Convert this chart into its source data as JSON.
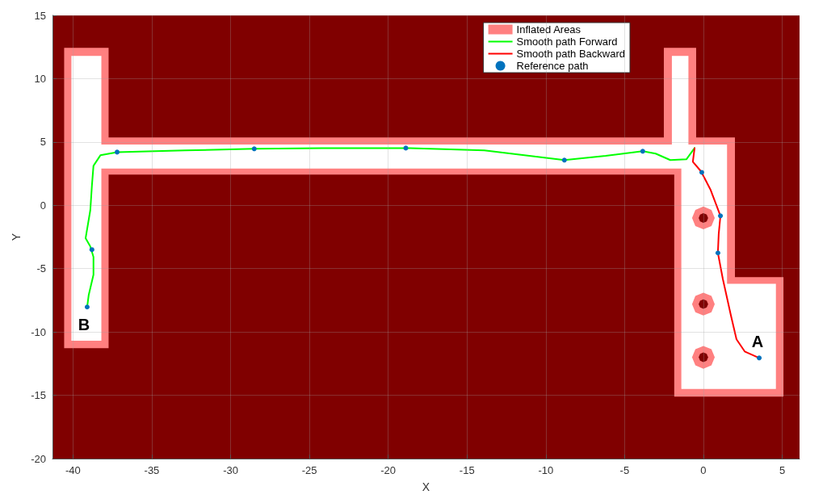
{
  "chart_data": {
    "type": "line",
    "xlabel": "X",
    "ylabel": "Y",
    "xlim": [
      -41.3,
      6.1
    ],
    "ylim": [
      -20,
      15
    ],
    "xticks": [
      -40,
      -35,
      -30,
      -25,
      -20,
      -15,
      -10,
      -5,
      0,
      5
    ],
    "yticks": [
      -20,
      -15,
      -10,
      -5,
      0,
      5,
      10,
      15
    ],
    "grid": true,
    "legend": "top right",
    "marker": "none",
    "line_style": "solid",
    "bands": [
      {
        "axis": "x",
        "from": -41.3,
        "to": 6.1,
        "color": "#800000"
      }
    ],
    "series": [
      {
        "name": "Inflated Areas",
        "type": "area",
        "color": "#ff8080",
        "x": [
          -40.56,
          -37.74,
          -37.74,
          -2.51,
          -2.51,
          -0.46,
          -0.46,
          2.0,
          2.0,
          5.08,
          5.08,
          -1.85,
          -1.85,
          -37.74,
          -37.74,
          -40.56
        ],
        "values": [
          12.43,
          12.43,
          5.35,
          5.35,
          12.43,
          12.43,
          5.35,
          5.35,
          -5.67,
          -5.67,
          -15.1,
          -15.1,
          2.42,
          2.42,
          -11.28,
          -11.28
        ]
      },
      {
        "type": "area",
        "color": "#ffffff",
        "x": [
          -40.1,
          -38.2,
          -38.2,
          -2.0,
          -2.0,
          -0.95,
          -0.95,
          1.5,
          1.5,
          4.6,
          4.6,
          -1.4,
          -1.4,
          -38.2,
          -38.2,
          -40.1
        ],
        "values": [
          11.8,
          11.8,
          4.8,
          4.8,
          11.8,
          11.8,
          4.8,
          4.8,
          -6.2,
          -6.2,
          -14.5,
          -14.5,
          2.9,
          2.9,
          -10.7,
          -10.7
        ]
      },
      {
        "type": "area",
        "color": "#ff8080",
        "x": [
          0.72,
          0.51,
          0,
          -0.51,
          -0.72,
          -0.51,
          0,
          0.51,
          null,
          0.72,
          0.51,
          0,
          -0.51,
          -0.72,
          -0.51,
          0,
          0.51,
          null,
          0.72,
          0.51,
          0,
          -0.51,
          -0.72,
          -0.51,
          0,
          0.51
        ],
        "values": [
          -1,
          -0.36,
          -0.1,
          -0.36,
          -1,
          -1.64,
          -1.9,
          -1.64,
          null,
          -7.8,
          -7.16,
          -6.9,
          -7.16,
          -7.8,
          -8.44,
          -8.7,
          -8.44,
          null,
          -12,
          -11.36,
          -11.1,
          -11.36,
          -12,
          -12.64,
          -12.9,
          -12.64
        ]
      },
      {
        "type": "area",
        "color": "#800000",
        "x": [
          0.3,
          0.21,
          0,
          -0.21,
          -0.3,
          -0.21,
          0,
          0.21,
          null,
          0.3,
          0.21,
          0,
          -0.21,
          -0.3,
          -0.21,
          0,
          0.21,
          null,
          0.3,
          0.21,
          0,
          -0.21,
          -0.3,
          -0.21,
          0,
          0.21
        ],
        "values": [
          -1,
          -0.73,
          -0.62,
          -0.73,
          -1,
          -1.27,
          -1.38,
          -1.27,
          null,
          -7.8,
          -7.53,
          -7.42,
          -7.53,
          -7.8,
          -8.07,
          -8.18,
          -8.07,
          null,
          -12,
          -11.73,
          -11.62,
          -11.73,
          -12,
          -12.27,
          -12.38,
          -12.27
        ]
      },
      {
        "name": "Smooth path Forward",
        "color": "#00ff00",
        "x": [
          -0.56,
          -1.08,
          -2.1,
          -3.03,
          -3.85,
          -6.2,
          -8.82,
          -13.9,
          -18.88,
          -24.2,
          -28.5,
          -32.9,
          -37.2,
          -38.26,
          -38.7,
          -38.8,
          -38.9,
          -39.2,
          -38.9,
          -38.7,
          -38.7,
          -39.0,
          -39.1
        ],
        "values": [
          4.52,
          3.63,
          3.57,
          4.08,
          4.27,
          3.9,
          3.57,
          4.33,
          4.52,
          4.52,
          4.46,
          4.33,
          4.2,
          3.95,
          3.12,
          1.53,
          -0.38,
          -2.6,
          -3.25,
          -4.08,
          -5.48,
          -7.07,
          -8.03
        ]
      },
      {
        "name": "Smooth path Backward",
        "color": "#ff0000",
        "x": [
          -0.56,
          -0.67,
          -0.15,
          0.46,
          1.08,
          0.97,
          0.92,
          1.23,
          1.74,
          2.1,
          2.62,
          3.54
        ],
        "values": [
          4.52,
          3.44,
          2.68,
          1.21,
          -0.83,
          -2.29,
          -3.76,
          -5.8,
          -8.67,
          -10.58,
          -11.54,
          -12.05
        ]
      },
      {
        "name": "Reference path",
        "type": "scatter",
        "marker": "circle",
        "color": "#0072bd",
        "x": [
          -0.1,
          1.08,
          0.92,
          3.54,
          -3.85,
          -8.82,
          -18.88,
          -28.5,
          -37.2,
          -38.8,
          -39.1
        ],
        "values": [
          2.6,
          -0.83,
          -3.76,
          -12.05,
          4.27,
          3.57,
          4.52,
          4.46,
          4.2,
          -3.5,
          -8.03
        ]
      }
    ],
    "annotations": [
      {
        "text": "A",
        "x": 3.54,
        "y": -12.05
      },
      {
        "text": "B",
        "x": -39.1,
        "y": -8.03
      }
    ]
  }
}
